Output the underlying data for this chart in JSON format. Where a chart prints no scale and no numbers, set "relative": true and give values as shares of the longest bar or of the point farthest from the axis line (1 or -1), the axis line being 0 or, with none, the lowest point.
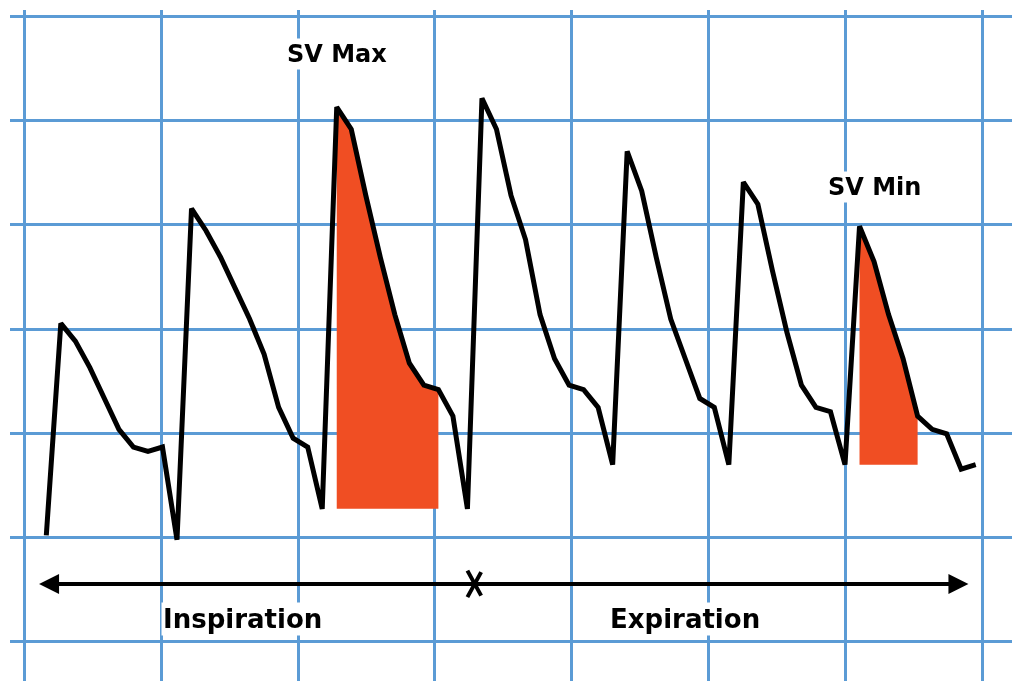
{
  "chart_data": {
    "type": "line",
    "relative": true,
    "grid": true,
    "marker": "none",
    "line_style": "solid",
    "categories": [
      null,
      null,
      null,
      null,
      null,
      null,
      null,
      null,
      null,
      null,
      null,
      null,
      null,
      null,
      null,
      null,
      null,
      null,
      null,
      null,
      null,
      null,
      null,
      null,
      null,
      null,
      null,
      null,
      null,
      null,
      null,
      null,
      null,
      null,
      null,
      null,
      null,
      null,
      null,
      null,
      null,
      null,
      null,
      null,
      null,
      null,
      null,
      null,
      null,
      null,
      null,
      null,
      null,
      null,
      null,
      null,
      null,
      null,
      null,
      null,
      null,
      null,
      null,
      null,
      null
    ],
    "series": [
      {
        "color": "#000000",
        "values": [
          0.01,
          0.49,
          0.45,
          0.39,
          0.32,
          0.25,
          0.21,
          0.2,
          0.21,
          0,
          0.75,
          0.7,
          0.64,
          0.57,
          0.5,
          0.42,
          0.3,
          0.23,
          0.21,
          0.07,
          0.98,
          0.93,
          0.78,
          0.64,
          0.51,
          0.4,
          0.35,
          0.34,
          0.28,
          0.07,
          1,
          0.93,
          0.78,
          0.68,
          0.51,
          0.41,
          0.35,
          0.34,
          0.3,
          0.17,
          0.88,
          0.79,
          0.64,
          0.5,
          0.41,
          0.32,
          0.3,
          0.17,
          0.81,
          0.76,
          0.61,
          0.47,
          0.35,
          0.3,
          0.29,
          0.17,
          0.71,
          0.63,
          0.51,
          0.41,
          0.28,
          0.25,
          0.24,
          0.16,
          0.17
        ],
        "upper": [
          null,
          null,
          null,
          null,
          null,
          null,
          null,
          null,
          null,
          null,
          null,
          null,
          null,
          null,
          null,
          null,
          null,
          null,
          null,
          null,
          0.98,
          0.93,
          0.78,
          0.64,
          0.51,
          0.4,
          0.35,
          0.34,
          null,
          null,
          null,
          null,
          null,
          null,
          null,
          null,
          null,
          null,
          null,
          null,
          null,
          null,
          null,
          null,
          null,
          null,
          null,
          null,
          null,
          null,
          null,
          null,
          null,
          null,
          null,
          null,
          0.71,
          0.63,
          0.51,
          0.41,
          0.28,
          null,
          null,
          null,
          null
        ],
        "lower": [
          null,
          null,
          null,
          null,
          null,
          null,
          null,
          null,
          null,
          null,
          null,
          null,
          null,
          null,
          null,
          null,
          null,
          null,
          null,
          null,
          0.07,
          0.07,
          0.07,
          0.07,
          0.07,
          0.07,
          0.07,
          0.07,
          null,
          null,
          null,
          null,
          null,
          null,
          null,
          null,
          null,
          null,
          null,
          null,
          null,
          null,
          null,
          null,
          null,
          null,
          null,
          null,
          null,
          null,
          null,
          null,
          null,
          null,
          null,
          null,
          0.17,
          0.17,
          0.17,
          0.17,
          0.17,
          null,
          null,
          null,
          null
        ]
      }
    ],
    "annotations": [
      "SV Max",
      "SV Min",
      "Inspiration",
      "Expiration"
    ]
  }
}
